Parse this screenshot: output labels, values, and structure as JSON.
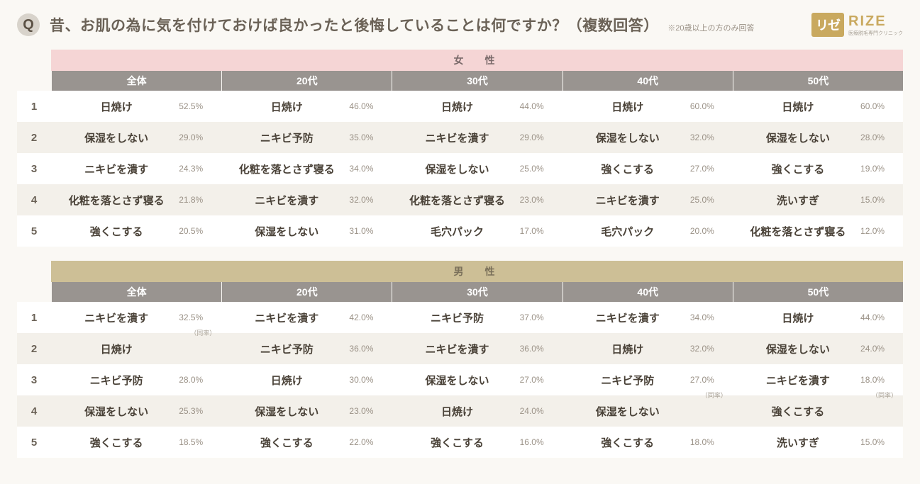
{
  "header": {
    "q_badge": "Q",
    "question": "昔、お肌の為に気を付けておけば良かったと後悔していることは何ですか？（複数回答）",
    "note": "※20歳以上の方のみ回答",
    "logo_box": "リゼ",
    "logo_text": "RIZE",
    "logo_sub": "医療脱毛専門クリニック"
  },
  "columns": [
    "全体",
    "20代",
    "30代",
    "40代",
    "50代"
  ],
  "tables": [
    {
      "gender": "女　性",
      "gender_class": "gender-f",
      "rows": [
        {
          "rank": "1",
          "cells": [
            {
              "label": "日焼け",
              "pct": "52.5%"
            },
            {
              "label": "日焼け",
              "pct": "46.0%"
            },
            {
              "label": "日焼け",
              "pct": "44.0%"
            },
            {
              "label": "日焼け",
              "pct": "60.0%"
            },
            {
              "label": "日焼け",
              "pct": "60.0%"
            }
          ]
        },
        {
          "rank": "2",
          "cells": [
            {
              "label": "保湿をしない",
              "pct": "29.0%"
            },
            {
              "label": "ニキビ予防",
              "pct": "35.0%"
            },
            {
              "label": "ニキビを潰す",
              "pct": "29.0%"
            },
            {
              "label": "保湿をしない",
              "pct": "32.0%"
            },
            {
              "label": "保湿をしない",
              "pct": "28.0%"
            }
          ]
        },
        {
          "rank": "3",
          "cells": [
            {
              "label": "ニキビを潰す",
              "pct": "24.3%"
            },
            {
              "label": "化粧を落とさず寝る",
              "pct": "34.0%"
            },
            {
              "label": "保湿をしない",
              "pct": "25.0%"
            },
            {
              "label": "強くこする",
              "pct": "27.0%"
            },
            {
              "label": "強くこする",
              "pct": "19.0%"
            }
          ]
        },
        {
          "rank": "4",
          "cells": [
            {
              "label": "化粧を落とさず寝る",
              "pct": "21.8%"
            },
            {
              "label": "ニキビを潰す",
              "pct": "32.0%"
            },
            {
              "label": "化粧を落とさず寝る",
              "pct": "23.0%"
            },
            {
              "label": "ニキビを潰す",
              "pct": "25.0%"
            },
            {
              "label": "洗いすぎ",
              "pct": "15.0%"
            }
          ]
        },
        {
          "rank": "5",
          "cells": [
            {
              "label": "強くこする",
              "pct": "20.5%"
            },
            {
              "label": "保湿をしない",
              "pct": "31.0%"
            },
            {
              "label": "毛穴パック",
              "pct": "17.0%"
            },
            {
              "label": "毛穴パック",
              "pct": "20.0%"
            },
            {
              "label": "化粧を落とさず寝る",
              "pct": "12.0%"
            }
          ]
        }
      ]
    },
    {
      "gender": "男　性",
      "gender_class": "gender-m",
      "rows": [
        {
          "rank": "1",
          "cells": [
            {
              "label": "ニキビを潰す",
              "pct": "32.5%",
              "note": "（同率）"
            },
            {
              "label": "ニキビを潰す",
              "pct": "42.0%"
            },
            {
              "label": "ニキビ予防",
              "pct": "37.0%"
            },
            {
              "label": "ニキビを潰す",
              "pct": "34.0%"
            },
            {
              "label": "日焼け",
              "pct": "44.0%"
            }
          ]
        },
        {
          "rank": "2",
          "cells": [
            {
              "label": "日焼け",
              "pct": ""
            },
            {
              "label": "ニキビ予防",
              "pct": "36.0%"
            },
            {
              "label": "ニキビを潰す",
              "pct": "36.0%"
            },
            {
              "label": "日焼け",
              "pct": "32.0%"
            },
            {
              "label": "保湿をしない",
              "pct": "24.0%"
            }
          ]
        },
        {
          "rank": "3",
          "cells": [
            {
              "label": "ニキビ予防",
              "pct": "28.0%"
            },
            {
              "label": "日焼け",
              "pct": "30.0%"
            },
            {
              "label": "保湿をしない",
              "pct": "27.0%"
            },
            {
              "label": "ニキビ予防",
              "pct": "27.0%",
              "note": "（同率）"
            },
            {
              "label": "ニキビを潰す",
              "pct": "18.0%",
              "note": "（同率）"
            }
          ]
        },
        {
          "rank": "4",
          "cells": [
            {
              "label": "保湿をしない",
              "pct": "25.3%"
            },
            {
              "label": "保湿をしない",
              "pct": "23.0%"
            },
            {
              "label": "日焼け",
              "pct": "24.0%"
            },
            {
              "label": "保湿をしない",
              "pct": ""
            },
            {
              "label": "強くこする",
              "pct": ""
            }
          ]
        },
        {
          "rank": "5",
          "cells": [
            {
              "label": "強くこする",
              "pct": "18.5%"
            },
            {
              "label": "強くこする",
              "pct": "22.0%"
            },
            {
              "label": "強くこする",
              "pct": "16.0%"
            },
            {
              "label": "強くこする",
              "pct": "18.0%"
            },
            {
              "label": "洗いすぎ",
              "pct": "15.0%"
            }
          ]
        }
      ]
    }
  ]
}
